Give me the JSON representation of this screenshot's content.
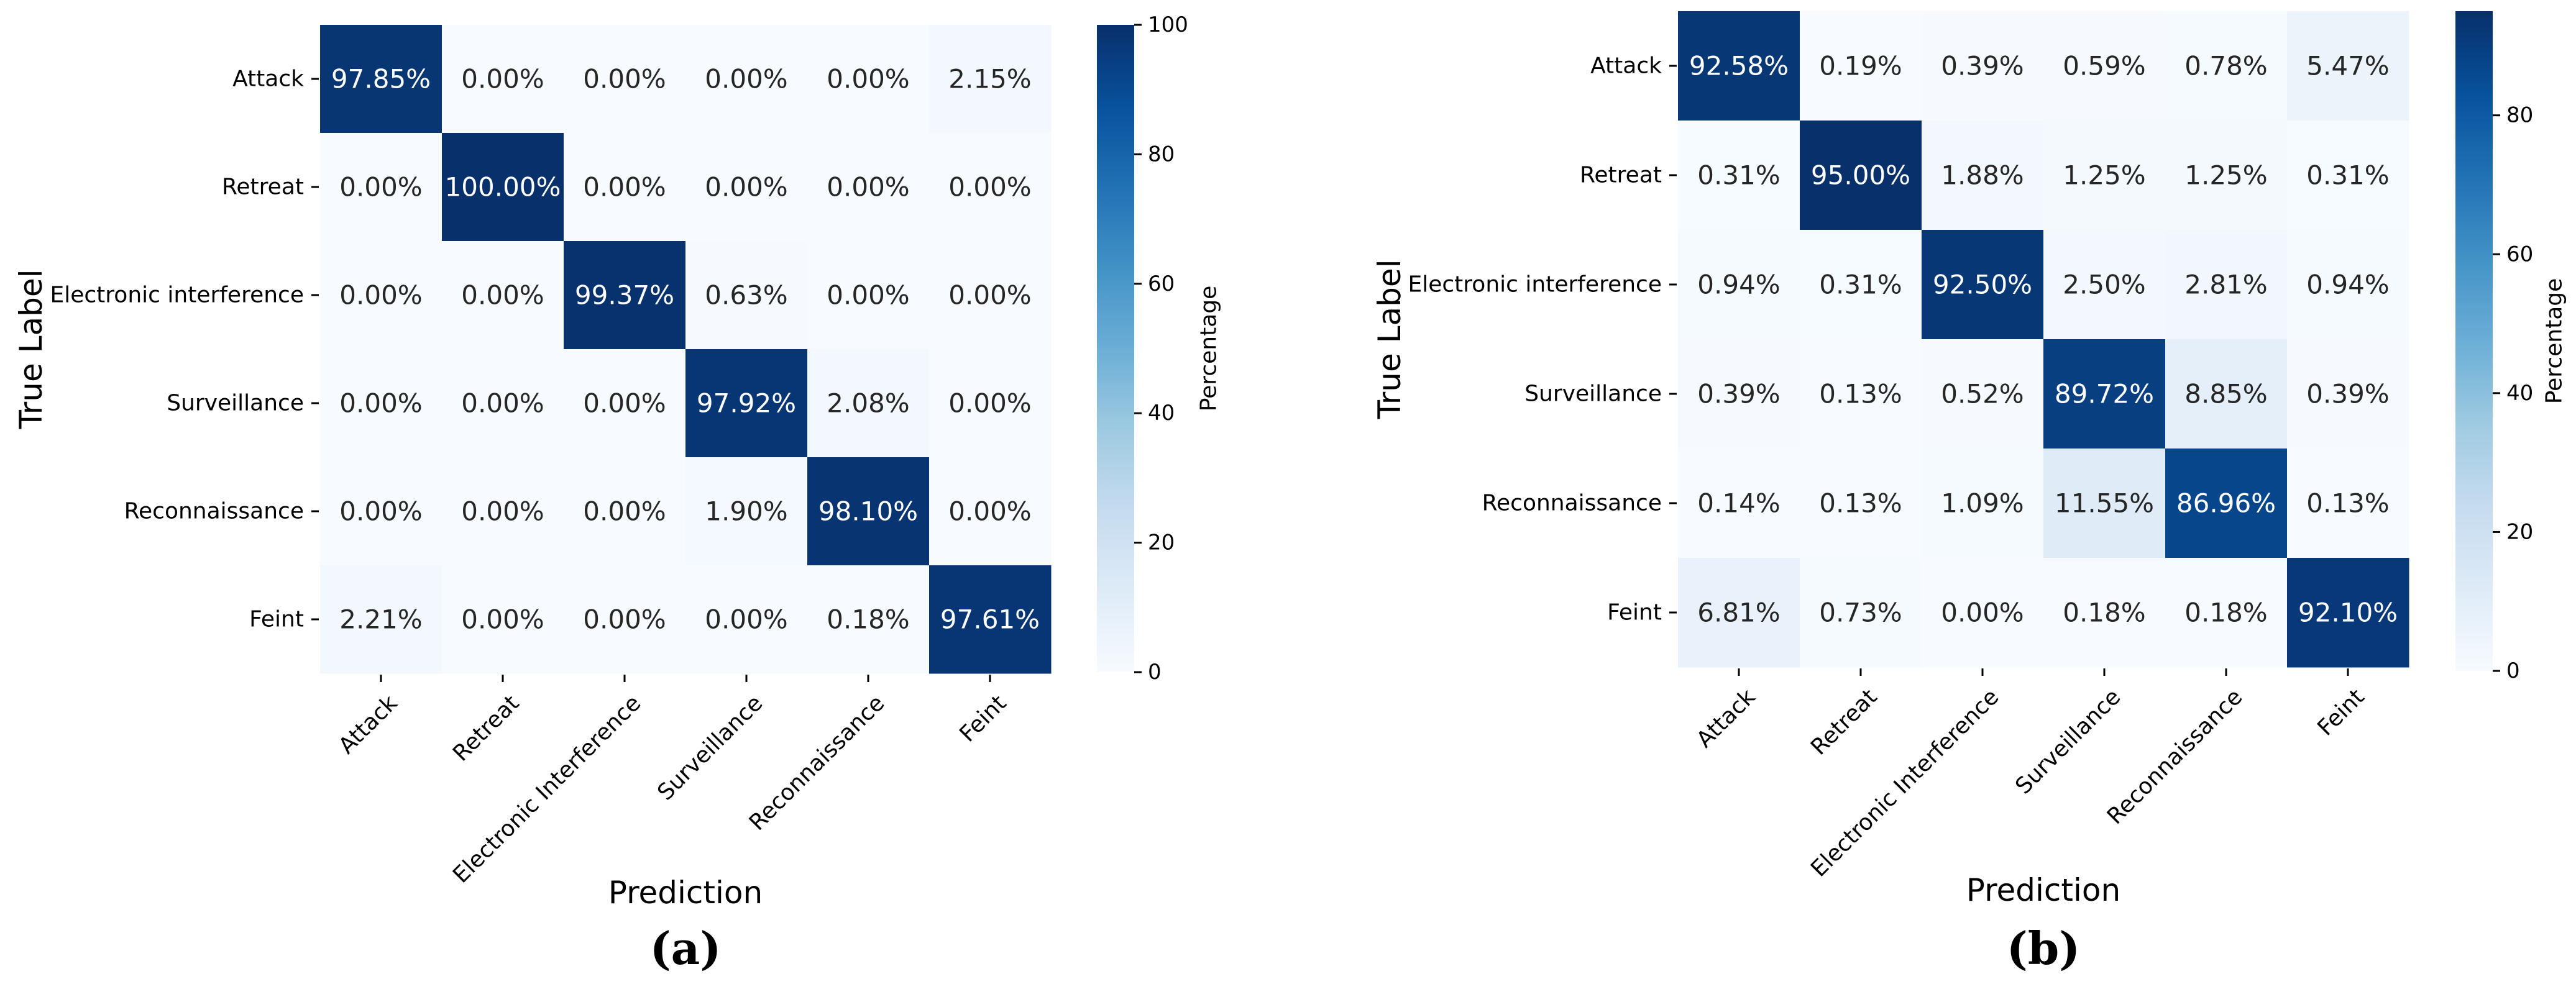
{
  "chart_data": [
    {
      "type": "heatmap",
      "panel_label": "(a)",
      "xlabel": "Prediction",
      "ylabel": "True Label",
      "row_labels": [
        "Attack",
        "Retreat",
        "Electronic interference",
        "Surveillance",
        "Reconnaissance",
        "Feint"
      ],
      "col_labels": [
        "Attack",
        "Retreat",
        "Electronic Interference",
        "Surveillance",
        "Reconnaissance",
        "Feint"
      ],
      "values": [
        [
          97.85,
          0.0,
          0.0,
          0.0,
          0.0,
          2.15
        ],
        [
          0.0,
          100.0,
          0.0,
          0.0,
          0.0,
          0.0
        ],
        [
          0.0,
          0.0,
          99.37,
          0.63,
          0.0,
          0.0
        ],
        [
          0.0,
          0.0,
          0.0,
          97.92,
          2.08,
          0.0
        ],
        [
          0.0,
          0.0,
          0.0,
          1.9,
          98.1,
          0.0
        ],
        [
          2.21,
          0.0,
          0.0,
          0.0,
          0.18,
          97.61
        ]
      ],
      "cell_labels": [
        [
          "97.85%",
          "0.00%",
          "0.00%",
          "0.00%",
          "0.00%",
          "2.15%"
        ],
        [
          "0.00%",
          "100.00%",
          "0.00%",
          "0.00%",
          "0.00%",
          "0.00%"
        ],
        [
          "0.00%",
          "0.00%",
          "99.37%",
          "0.63%",
          "0.00%",
          "0.00%"
        ],
        [
          "0.00%",
          "0.00%",
          "0.00%",
          "97.92%",
          "2.08%",
          "0.00%"
        ],
        [
          "0.00%",
          "0.00%",
          "0.00%",
          "1.90%",
          "98.10%",
          "0.00%"
        ],
        [
          "2.21%",
          "0.00%",
          "0.00%",
          "0.00%",
          "0.18%",
          "97.61%"
        ]
      ],
      "colorbar": {
        "label": "Percentage",
        "range": [
          0,
          100
        ],
        "ticks": [
          0,
          20,
          40,
          60,
          80,
          100
        ],
        "tick_labels": [
          "0",
          "20",
          "40",
          "60",
          "80",
          "100"
        ]
      },
      "colormap": [
        "#f7fbff",
        "#deebf7",
        "#c6dbef",
        "#9ecae1",
        "#6baed6",
        "#4292c6",
        "#2171b5",
        "#08519c",
        "#08306b"
      ]
    },
    {
      "type": "heatmap",
      "panel_label": "(b)",
      "xlabel": "Prediction",
      "ylabel": "True Label",
      "row_labels": [
        "Attack",
        "Retreat",
        "Electronic interference",
        "Surveillance",
        "Reconnaissance",
        "Feint"
      ],
      "col_labels": [
        "Attack",
        "Retreat",
        "Electronic Interference",
        "Surveillance",
        "Reconnaissance",
        "Feint"
      ],
      "values": [
        [
          92.58,
          0.19,
          0.39,
          0.59,
          0.78,
          5.47
        ],
        [
          0.31,
          95.0,
          1.88,
          1.25,
          1.25,
          0.31
        ],
        [
          0.94,
          0.31,
          92.5,
          2.5,
          2.81,
          0.94
        ],
        [
          0.39,
          0.13,
          0.52,
          89.72,
          8.85,
          0.39
        ],
        [
          0.14,
          0.13,
          1.09,
          11.55,
          86.96,
          0.13
        ],
        [
          6.81,
          0.73,
          0.0,
          0.18,
          0.18,
          92.1
        ]
      ],
      "cell_labels": [
        [
          "92.58%",
          "0.19%",
          "0.39%",
          "0.59%",
          "0.78%",
          "5.47%"
        ],
        [
          "0.31%",
          "95.00%",
          "1.88%",
          "1.25%",
          "1.25%",
          "0.31%"
        ],
        [
          "0.94%",
          "0.31%",
          "92.50%",
          "2.50%",
          "2.81%",
          "0.94%"
        ],
        [
          "0.39%",
          "0.13%",
          "0.52%",
          "89.72%",
          "8.85%",
          "0.39%"
        ],
        [
          "0.14%",
          "0.13%",
          "1.09%",
          "11.55%",
          "86.96%",
          "0.13%"
        ],
        [
          "6.81%",
          "0.73%",
          "0.00%",
          "0.18%",
          "0.18%",
          "92.10%"
        ]
      ],
      "colorbar": {
        "label": "Percentage",
        "range": [
          0,
          95
        ],
        "ticks": [
          0,
          20,
          40,
          60,
          80
        ],
        "tick_labels": [
          "0",
          "20",
          "40",
          "60",
          "80"
        ]
      },
      "colormap": [
        "#f7fbff",
        "#deebf7",
        "#c6dbef",
        "#9ecae1",
        "#6baed6",
        "#4292c6",
        "#2171b5",
        "#08519c",
        "#08306b"
      ]
    }
  ]
}
